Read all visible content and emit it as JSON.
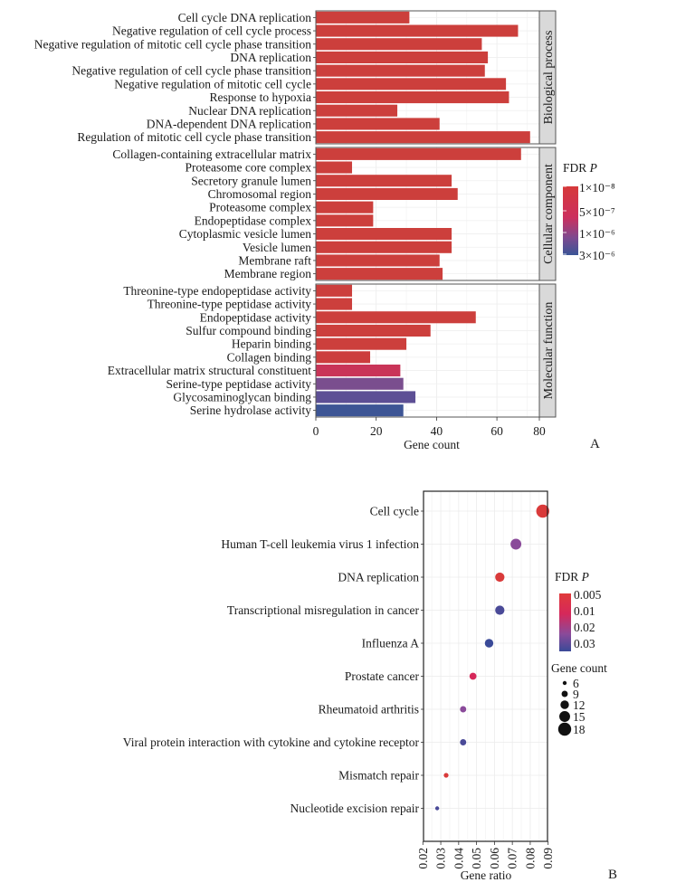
{
  "chart_data": [
    {
      "panel": "A",
      "type": "bar",
      "orientation": "horizontal",
      "xlabel": "Gene count",
      "xlim": [
        0,
        80
      ],
      "xticks": [
        "0",
        "20",
        "40",
        "60",
        "80"
      ],
      "grid": true,
      "legend": {
        "title": "FDR",
        "title_italic": "P",
        "placement": "right",
        "labels": [
          "1×10⁻⁸",
          "5×10⁻⁷",
          "1×10⁻⁶",
          "3×10⁻⁶"
        ],
        "colors": [
          "#d63a3a",
          "#cc2f5e",
          "#7c4a90",
          "#3a5596"
        ]
      },
      "facets": [
        {
          "name": "Biological process",
          "categories": [
            "Cell cycle DNA replication",
            "Negative regulation of cell cycle process",
            "Negative regulation of mitotic cell cycle phase transition",
            "DNA replication",
            "Negative regulation of cell cycle phase transition",
            "Negative regulation of mitotic cell cycle",
            "Response to hypoxia",
            "Nuclear DNA replication",
            "DNA-dependent DNA replication",
            "Regulation of mitotic cell cycle phase transition"
          ],
          "values": [
            31,
            67,
            55,
            57,
            56,
            63,
            64,
            27,
            41,
            71
          ],
          "colors": [
            "#cc3f3c",
            "#cc3f3c",
            "#cc3f3c",
            "#cc3f3c",
            "#cc3f3c",
            "#cc3f3c",
            "#cc3f3c",
            "#cc3f3c",
            "#cc3f3c",
            "#cc3f3c"
          ]
        },
        {
          "name": "Cellular component",
          "categories": [
            "Collagen-containing extracellular matrix",
            "Proteasome core complex",
            "Secretory granule lumen",
            "Chromosomal region",
            "Proteasome complex",
            "Endopeptidase complex",
            "Cytoplasmic vesicle lumen",
            "Vesicle lumen",
            "Membrane raft",
            "Membrane region"
          ],
          "values": [
            68,
            12,
            45,
            47,
            19,
            19,
            45,
            45,
            41,
            42
          ],
          "colors": [
            "#cc3f3c",
            "#cc3f3c",
            "#cc3f3c",
            "#cc3f3c",
            "#cc3f3c",
            "#cc3f3c",
            "#cc3f3c",
            "#cc3f3c",
            "#cc3f3c",
            "#cc3f3c"
          ]
        },
        {
          "name": "Molecular function",
          "categories": [
            "Threonine-type endopeptidase activity",
            "Threonine-type peptidase activity",
            "Endopeptidase activity",
            "Sulfur compound binding",
            "Heparin binding",
            "Collagen binding",
            "Extracellular matrix structural constituent",
            "Serine-type peptidase activity",
            "Glycosaminoglycan binding",
            "Serine hydrolase activity"
          ],
          "values": [
            12,
            12,
            53,
            38,
            30,
            18,
            28,
            29,
            33,
            29
          ],
          "colors": [
            "#cc3f3c",
            "#cc3f3c",
            "#cc3f3c",
            "#cc3f3c",
            "#cc3f3c",
            "#cc3d3d",
            "#c93458",
            "#7a4e8e",
            "#5d4f95",
            "#3d5595"
          ]
        }
      ]
    },
    {
      "panel": "B",
      "type": "scatter",
      "xlabel": "Gene ratio",
      "xlim": [
        0.02,
        0.09
      ],
      "xticks": [
        "0.02",
        "0.03",
        "0.04",
        "0.05",
        "0.06",
        "0.07",
        "0.08",
        "0.09"
      ],
      "grid": true,
      "categories": [
        "Cell cycle",
        "Human T-cell leukemia virus 1 infection",
        "DNA replication",
        "Transcriptional misregulation in cancer",
        "Influenza A",
        "Prostate cancer",
        "Rheumatoid arthritis",
        "Viral protein interaction with cytokine and cytokine receptor",
        "Mismatch repair",
        "Nucleotide excision repair"
      ],
      "gene_ratio": [
        0.087,
        0.072,
        0.063,
        0.063,
        0.057,
        0.048,
        0.0425,
        0.0425,
        0.033,
        0.028
      ],
      "gene_count": [
        18,
        15,
        13,
        13,
        12,
        10,
        9,
        9,
        7,
        6
      ],
      "colors": [
        "#d93a3a",
        "#8a4a9a",
        "#d93a3a",
        "#4a4a98",
        "#3a4a98",
        "#d6285a",
        "#8a4a9a",
        "#4a4a98",
        "#d93a3a",
        "#4a4a98"
      ],
      "color_legend": {
        "title": "FDR",
        "title_italic": "P",
        "labels": [
          "0.005",
          "0.01",
          "0.02",
          "0.03"
        ],
        "placement": "right"
      },
      "size_legend": {
        "title": "Gene count",
        "values": [
          6,
          9,
          12,
          15,
          18
        ],
        "labels": [
          "6",
          "9",
          "12",
          "15",
          "18"
        ]
      }
    }
  ],
  "panel_labels": {
    "a": "A",
    "b": "B"
  }
}
